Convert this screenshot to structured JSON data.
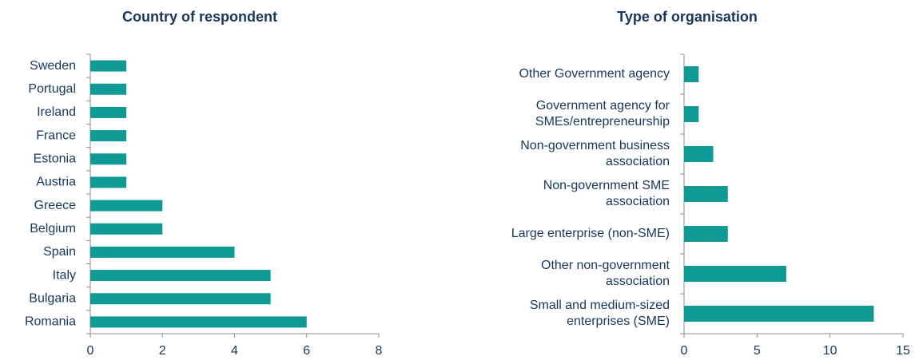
{
  "chart_data": [
    {
      "type": "hbar",
      "title": "Country of respondent",
      "categories": [
        "Sweden",
        "Portugal",
        "Ireland",
        "France",
        "Estonia",
        "Austria",
        "Greece",
        "Belgium",
        "Spain",
        "Italy",
        "Bulgaria",
        "Romania"
      ],
      "values": [
        1,
        1,
        1,
        1,
        1,
        1,
        2,
        2,
        4,
        5,
        5,
        6
      ],
      "color": "#0f9a95",
      "xlim": [
        0,
        8
      ],
      "xticks": [
        0,
        2,
        4,
        6,
        8
      ]
    },
    {
      "type": "hbar",
      "title": "Type of organisation",
      "categories": [
        "Other Government agency",
        "Government agency for\nSMEs/entrepreneurship",
        "Non-government business\nassociation",
        "Non-government SME\nassociation",
        "Large enterprise (non-SME)",
        "Other non-government\nassociation",
        "Small and medium-sized\nenterprises (SME)"
      ],
      "values": [
        1,
        1,
        2,
        3,
        3,
        7,
        13
      ],
      "color": "#0f9a95",
      "xlim": [
        0,
        15
      ],
      "xticks": [
        0,
        5,
        10,
        15
      ]
    }
  ]
}
